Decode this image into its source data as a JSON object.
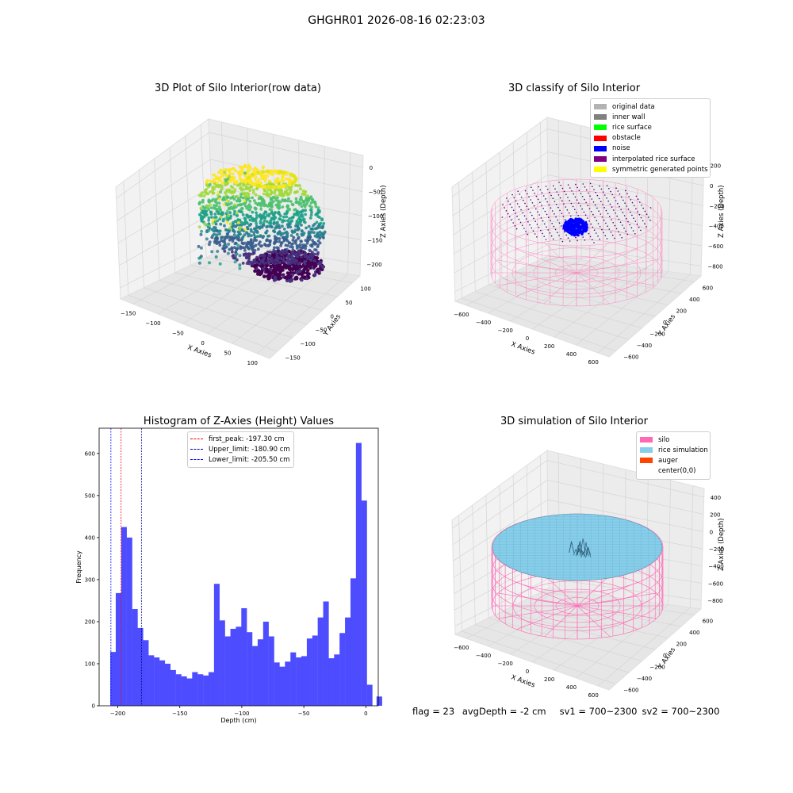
{
  "figure_title": "GHGHR01 2026-08-16 02:23:03",
  "status": {
    "flag": "flag = 23",
    "avg_depth": "avgDepth = -2 cm",
    "sv1": "sv1 = 700~2300",
    "sv2": "sv2 = 700~2300"
  },
  "chart_data": [
    {
      "type": "scatter",
      "title": "3D Plot of Silo Interior(row data)",
      "xlabel": "X Axies",
      "ylabel": "Y Axies",
      "zlabel": "Z Axies (Depth)",
      "xticks": [
        "−150",
        "−100",
        "−50",
        "0",
        "50",
        "100"
      ],
      "yticks": [
        "100",
        "50",
        "0",
        "−50",
        "−100",
        "−150"
      ],
      "zticks": [
        "0",
        "−50",
        "−100",
        "−150",
        "−200"
      ],
      "xlim": [
        -150,
        100
      ],
      "ylim": [
        -150,
        100
      ],
      "zlim": [
        -220,
        0
      ],
      "colormap": "viridis"
    },
    {
      "type": "scatter",
      "title": "3D classify of Silo Interior",
      "xlabel": "X Axies",
      "ylabel": "Y Axies",
      "zlabel": "Z Axies (Depth)",
      "xticks": [
        "−600",
        "−400",
        "−200",
        "0",
        "200",
        "400",
        "600"
      ],
      "yticks": [
        "600",
        "400",
        "200",
        "0",
        "−200",
        "−400",
        "−600"
      ],
      "zticks": [
        "200",
        "0",
        "−200",
        "−400",
        "−600",
        "−800"
      ],
      "legend": [
        {
          "label": "original data",
          "color": "#b3b3b3"
        },
        {
          "label": "inner wall",
          "color": "#808080"
        },
        {
          "label": "rice surface",
          "color": "#00ff00"
        },
        {
          "label": "obstacle",
          "color": "#ff0000"
        },
        {
          "label": "noise",
          "color": "#0000ff"
        },
        {
          "label": "interpolated rice surface",
          "color": "#800080"
        },
        {
          "label": "symmetric generated points",
          "color": "#ffff00"
        }
      ],
      "legend_position": "top-right"
    },
    {
      "type": "bar",
      "title": "Histogram of Z-Axies (Height) Values",
      "xlabel": "Depth (cm)",
      "ylabel": "Frequency",
      "xlim": [
        -215,
        10
      ],
      "ylim": [
        0,
        660
      ],
      "xticks": [
        -200,
        -150,
        -100,
        -50,
        0
      ],
      "yticks": [
        0,
        100,
        200,
        300,
        400,
        500,
        600
      ],
      "bar_color": "#4d4dff",
      "bin_width": 4.4,
      "bins": [
        {
          "x": -206.0,
          "v": 128
        },
        {
          "x": -201.6,
          "v": 268
        },
        {
          "x": -197.2,
          "v": 425
        },
        {
          "x": -192.8,
          "v": 400
        },
        {
          "x": -188.4,
          "v": 230
        },
        {
          "x": -184.0,
          "v": 185
        },
        {
          "x": -179.6,
          "v": 156
        },
        {
          "x": -175.2,
          "v": 120
        },
        {
          "x": -170.8,
          "v": 115
        },
        {
          "x": -166.4,
          "v": 108
        },
        {
          "x": -162.0,
          "v": 100
        },
        {
          "x": -157.6,
          "v": 85
        },
        {
          "x": -153.2,
          "v": 75
        },
        {
          "x": -148.8,
          "v": 70
        },
        {
          "x": -144.4,
          "v": 65
        },
        {
          "x": -140.0,
          "v": 80
        },
        {
          "x": -135.6,
          "v": 75
        },
        {
          "x": -131.2,
          "v": 72
        },
        {
          "x": -126.8,
          "v": 80
        },
        {
          "x": -122.4,
          "v": 290
        },
        {
          "x": -118.0,
          "v": 203
        },
        {
          "x": -113.6,
          "v": 165
        },
        {
          "x": -109.2,
          "v": 183
        },
        {
          "x": -104.8,
          "v": 188
        },
        {
          "x": -100.4,
          "v": 232
        },
        {
          "x": -96.0,
          "v": 175
        },
        {
          "x": -91.6,
          "v": 142
        },
        {
          "x": -87.2,
          "v": 158
        },
        {
          "x": -82.8,
          "v": 200
        },
        {
          "x": -78.4,
          "v": 165
        },
        {
          "x": -74.0,
          "v": 103
        },
        {
          "x": -69.6,
          "v": 93
        },
        {
          "x": -65.2,
          "v": 105
        },
        {
          "x": -60.8,
          "v": 127
        },
        {
          "x": -56.4,
          "v": 115
        },
        {
          "x": -52.0,
          "v": 118
        },
        {
          "x": -47.6,
          "v": 160
        },
        {
          "x": -43.2,
          "v": 167
        },
        {
          "x": -38.8,
          "v": 210
        },
        {
          "x": -34.4,
          "v": 248
        },
        {
          "x": -30.0,
          "v": 113
        },
        {
          "x": -25.6,
          "v": 122
        },
        {
          "x": -21.2,
          "v": 173
        },
        {
          "x": -16.8,
          "v": 210
        },
        {
          "x": -12.4,
          "v": 303
        },
        {
          "x": -8.0,
          "v": 625
        },
        {
          "x": -3.6,
          "v": 488
        },
        {
          "x": 0.8,
          "v": 50
        },
        {
          "x": 5.2,
          "v": 0
        },
        {
          "x": 8.6,
          "v": 22
        }
      ],
      "vlines": [
        {
          "label": "first_peak: -197.30 cm",
          "x": -197.3,
          "color": "#ff0000"
        },
        {
          "label": "Upper_limit: -180.90 cm",
          "x": -180.9,
          "color": "#00008b"
        },
        {
          "label": "Lower_limit: -205.50 cm",
          "x": -205.5,
          "color": "#0000ff"
        }
      ]
    },
    {
      "type": "scatter",
      "title": "3D simulation of Silo Interior",
      "xlabel": "X Axies",
      "ylabel": "Y Axies",
      "zlabel": "Z Axies (Depth)",
      "xticks": [
        "−600",
        "−400",
        "−200",
        "0",
        "200",
        "400",
        "600"
      ],
      "yticks": [
        "600",
        "400",
        "200",
        "0",
        "−200",
        "−400",
        "−600"
      ],
      "zticks": [
        "400",
        "200",
        "0",
        "−200",
        "−400",
        "−600",
        "−800"
      ],
      "legend": [
        {
          "label": "silo",
          "color": "#ff69b4"
        },
        {
          "label": "rice simulation",
          "color": "#87ceeb"
        },
        {
          "label": "auger",
          "color": "#ff4500"
        },
        {
          "label": "center(0,0)",
          "color": "#ffffff"
        }
      ],
      "legend_position": "top-right"
    }
  ]
}
